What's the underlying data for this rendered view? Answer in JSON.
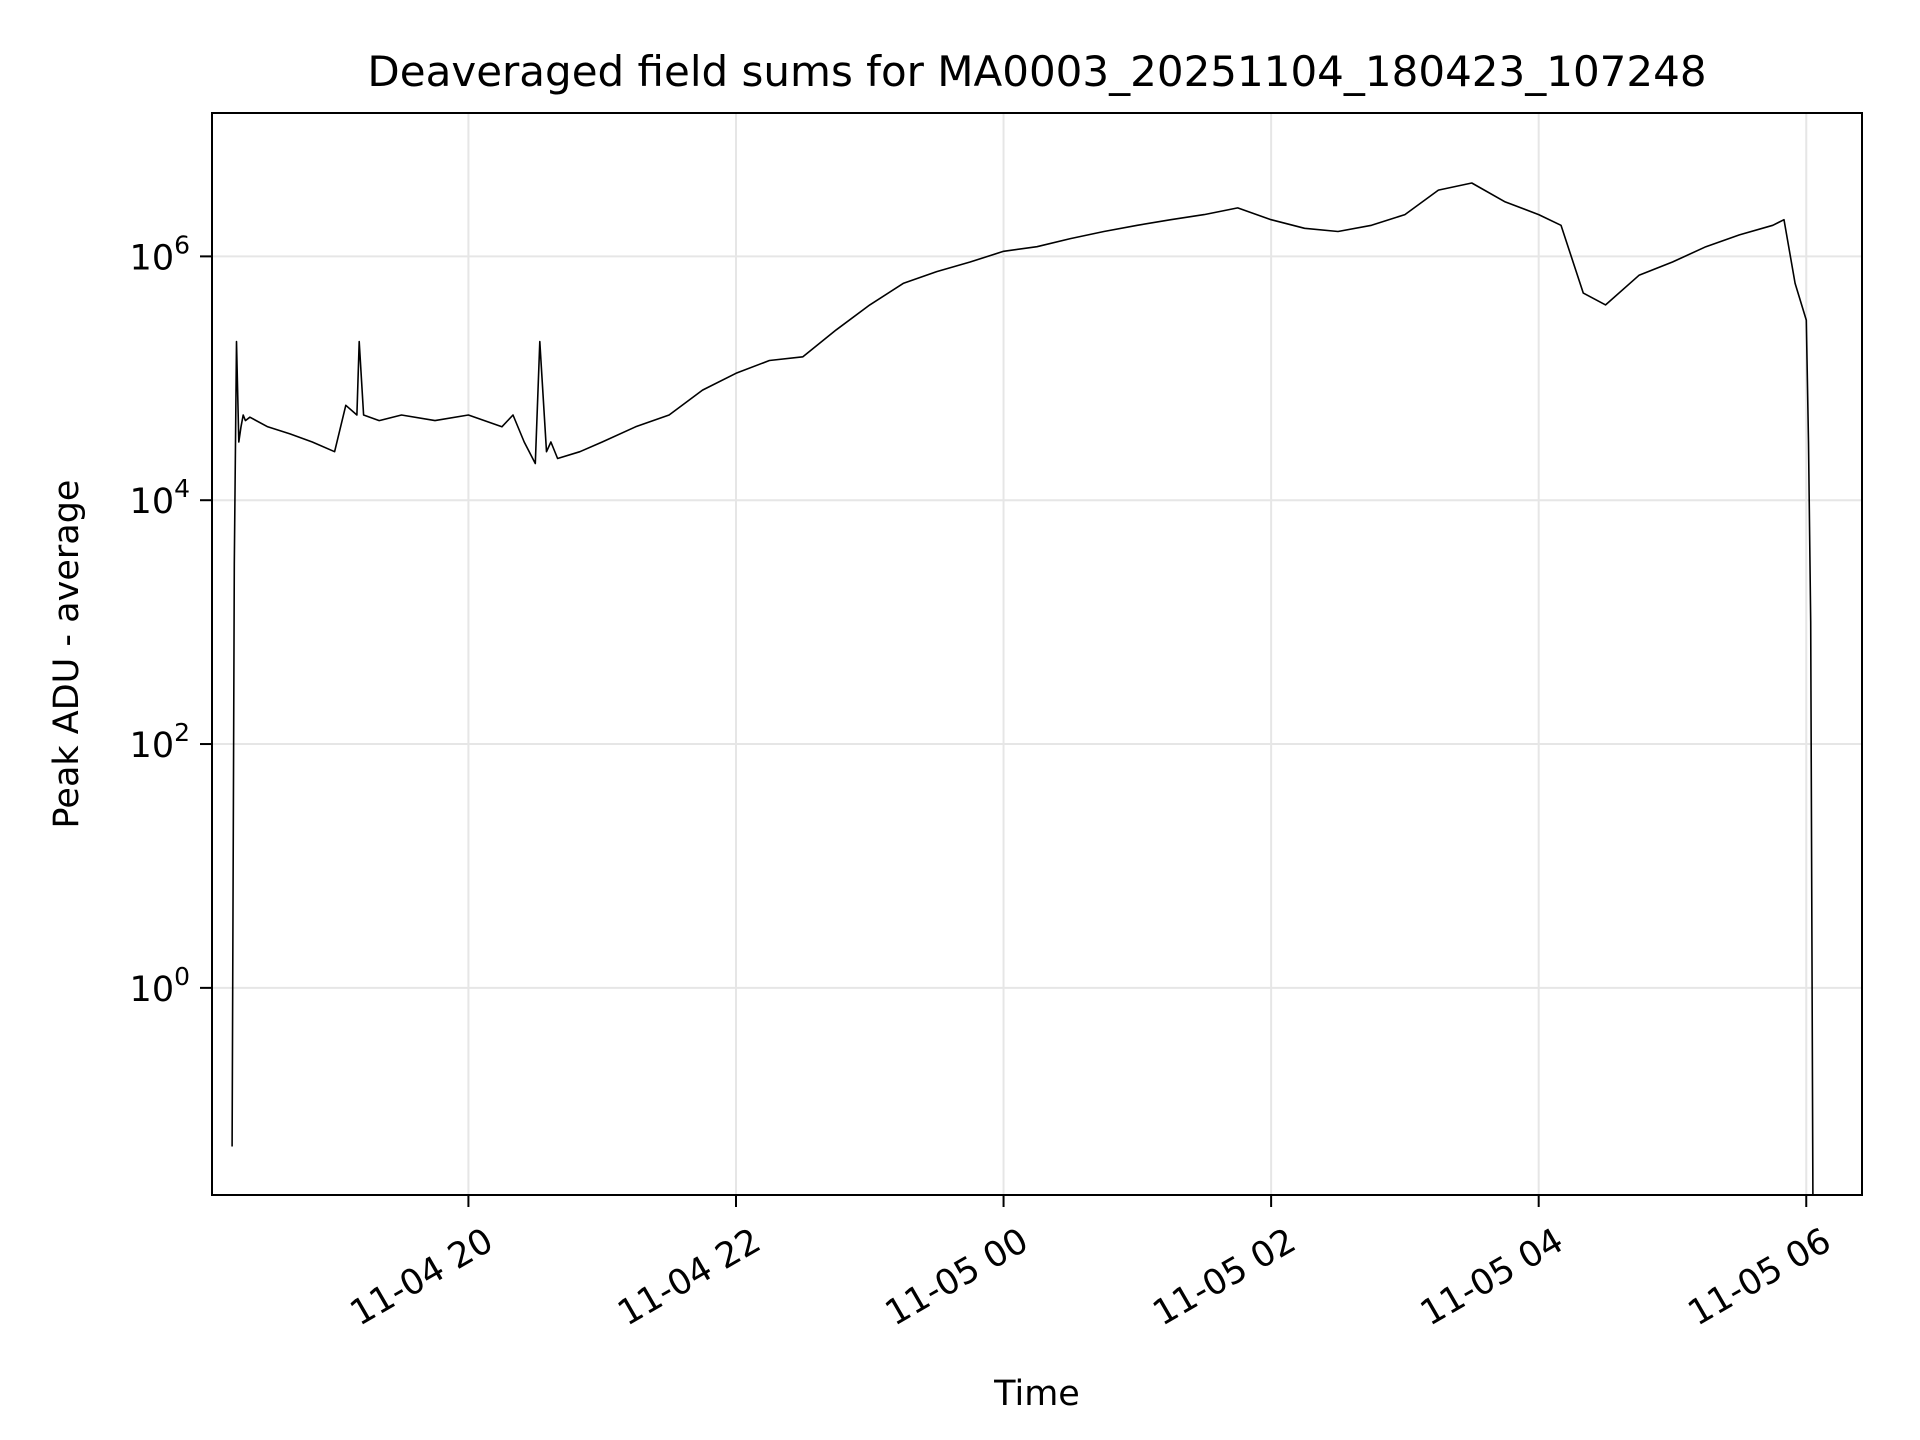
{
  "chart_data": {
    "type": "line",
    "title": "Deaveraged field sums for MA0003_20251104_180423_107248",
    "xlabel": "Time",
    "ylabel": "Peak ADU - average",
    "yscale": "log",
    "ylim": [
      0.02,
      15000000
    ],
    "xlim": [
      "2025-11-04 18:05",
      "2025-11-05 06:25"
    ],
    "grid": true,
    "line_color": "#000000",
    "grid_color": "#e6e6e6",
    "x_ticks": [
      {
        "value": "2025-11-04 20:00",
        "label": "11-04 20"
      },
      {
        "value": "2025-11-04 22:00",
        "label": "11-04 22"
      },
      {
        "value": "2025-11-05 00:00",
        "label": "11-05 00"
      },
      {
        "value": "2025-11-05 02:00",
        "label": "11-05 02"
      },
      {
        "value": "2025-11-05 04:00",
        "label": "11-05 04"
      },
      {
        "value": "2025-11-05 06:00",
        "label": "11-05 06"
      }
    ],
    "y_ticks": [
      {
        "value": 1,
        "base": "10",
        "exp": "0"
      },
      {
        "value": 100,
        "base": "10",
        "exp": "2"
      },
      {
        "value": 10000,
        "base": "10",
        "exp": "4"
      },
      {
        "value": 1000000,
        "base": "10",
        "exp": "6"
      }
    ],
    "series": [
      {
        "x": [
          "2025-11-04 18:14",
          "2025-11-04 18:15",
          "2025-11-04 18:16",
          "2025-11-04 18:17",
          "2025-11-04 18:18",
          "2025-11-04 18:19",
          "2025-11-04 18:20",
          "2025-11-04 18:22",
          "2025-11-04 18:30",
          "2025-11-04 18:40",
          "2025-11-04 18:50",
          "2025-11-04 19:00",
          "2025-11-04 19:05",
          "2025-11-04 19:10",
          "2025-11-04 19:11",
          "2025-11-04 19:13",
          "2025-11-04 19:20",
          "2025-11-04 19:30",
          "2025-11-04 19:45",
          "2025-11-04 20:00",
          "2025-11-04 20:15",
          "2025-11-04 20:20",
          "2025-11-04 20:25",
          "2025-11-04 20:30",
          "2025-11-04 20:32",
          "2025-11-04 20:35",
          "2025-11-04 20:37",
          "2025-11-04 20:40",
          "2025-11-04 20:50",
          "2025-11-04 21:00",
          "2025-11-04 21:15",
          "2025-11-04 21:30",
          "2025-11-04 21:45",
          "2025-11-04 22:00",
          "2025-11-04 22:15",
          "2025-11-04 22:30",
          "2025-11-04 22:45",
          "2025-11-04 23:00",
          "2025-11-04 23:15",
          "2025-11-04 23:30",
          "2025-11-04 23:45",
          "2025-11-05 00:00",
          "2025-11-05 00:15",
          "2025-11-05 00:30",
          "2025-11-05 00:45",
          "2025-11-05 01:00",
          "2025-11-05 01:15",
          "2025-11-05 01:30",
          "2025-11-05 01:45",
          "2025-11-05 02:00",
          "2025-11-05 02:15",
          "2025-11-05 02:30",
          "2025-11-05 02:45",
          "2025-11-05 03:00",
          "2025-11-05 03:15",
          "2025-11-05 03:30",
          "2025-11-05 03:45",
          "2025-11-05 04:00",
          "2025-11-05 04:10",
          "2025-11-05 04:20",
          "2025-11-05 04:30",
          "2025-11-05 04:45",
          "2025-11-05 05:00",
          "2025-11-05 05:15",
          "2025-11-05 05:30",
          "2025-11-05 05:45",
          "2025-11-05 05:50",
          "2025-11-05 05:55",
          "2025-11-05 06:00",
          "2025-11-05 06:01",
          "2025-11-05 06:02",
          "2025-11-05 06:03"
        ],
        "y": [
          0.05,
          3000,
          200000,
          30000,
          40000,
          50000,
          45000,
          48000,
          40000,
          35000,
          30000,
          25000,
          60000,
          50000,
          200000,
          50000,
          45000,
          50000,
          45000,
          50000,
          40000,
          50000,
          30000,
          20000,
          200000,
          25000,
          30000,
          22000,
          25000,
          30000,
          40000,
          50000,
          80000,
          110000,
          140000,
          150000,
          250000,
          400000,
          600000,
          750000,
          900000,
          1100000,
          1200000,
          1400000,
          1600000,
          1800000,
          2000000,
          2200000,
          2500000,
          2000000,
          1700000,
          1600000,
          1800000,
          2200000,
          3500000,
          4000000,
          2800000,
          2200000,
          1800000,
          500000,
          400000,
          700000,
          900000,
          1200000,
          1500000,
          1800000,
          2000000,
          600000,
          300000,
          30000,
          1000,
          0.02
        ]
      }
    ]
  }
}
